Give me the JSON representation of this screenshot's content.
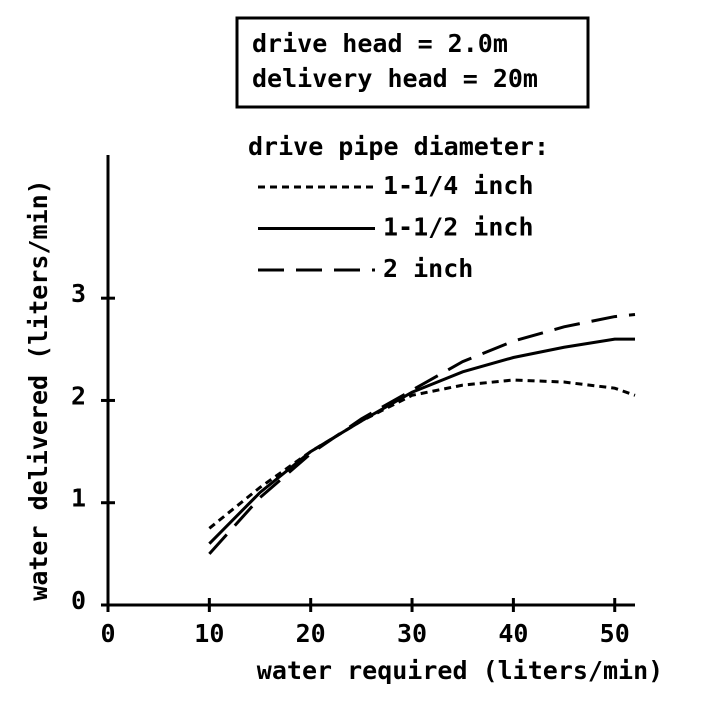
{
  "chart_data": {
    "type": "line",
    "annotations": [
      "drive head = 2.0m",
      "delivery head = 20m"
    ],
    "legend_title": "drive pipe diameter:",
    "x_label": "water required (liters/min)",
    "y_label": "water delivered (liters/min)",
    "x": [
      10,
      15,
      20,
      25,
      30,
      35,
      40,
      45,
      50,
      52
    ],
    "series": [
      {
        "name": "1-1/4 inch",
        "color": "#000000",
        "dash": "short",
        "values": [
          0.75,
          1.15,
          1.5,
          1.8,
          2.05,
          2.15,
          2.2,
          2.18,
          2.12,
          2.05
        ]
      },
      {
        "name": "1-1/2 inch",
        "color": "#000000",
        "dash": "solid",
        "values": [
          0.6,
          1.1,
          1.5,
          1.8,
          2.08,
          2.28,
          2.42,
          2.52,
          2.6,
          2.6
        ]
      },
      {
        "name": "2 inch",
        "color": "#000000",
        "dash": "long",
        "values": [
          0.5,
          1.05,
          1.48,
          1.82,
          2.1,
          2.38,
          2.58,
          2.72,
          2.82,
          2.84
        ]
      }
    ],
    "xlim": [
      0,
      52
    ],
    "ylim": [
      0,
      4.4
    ],
    "xticks": [
      0,
      10,
      20,
      30,
      40,
      50
    ],
    "yticks": [
      0,
      1,
      2,
      3
    ]
  }
}
